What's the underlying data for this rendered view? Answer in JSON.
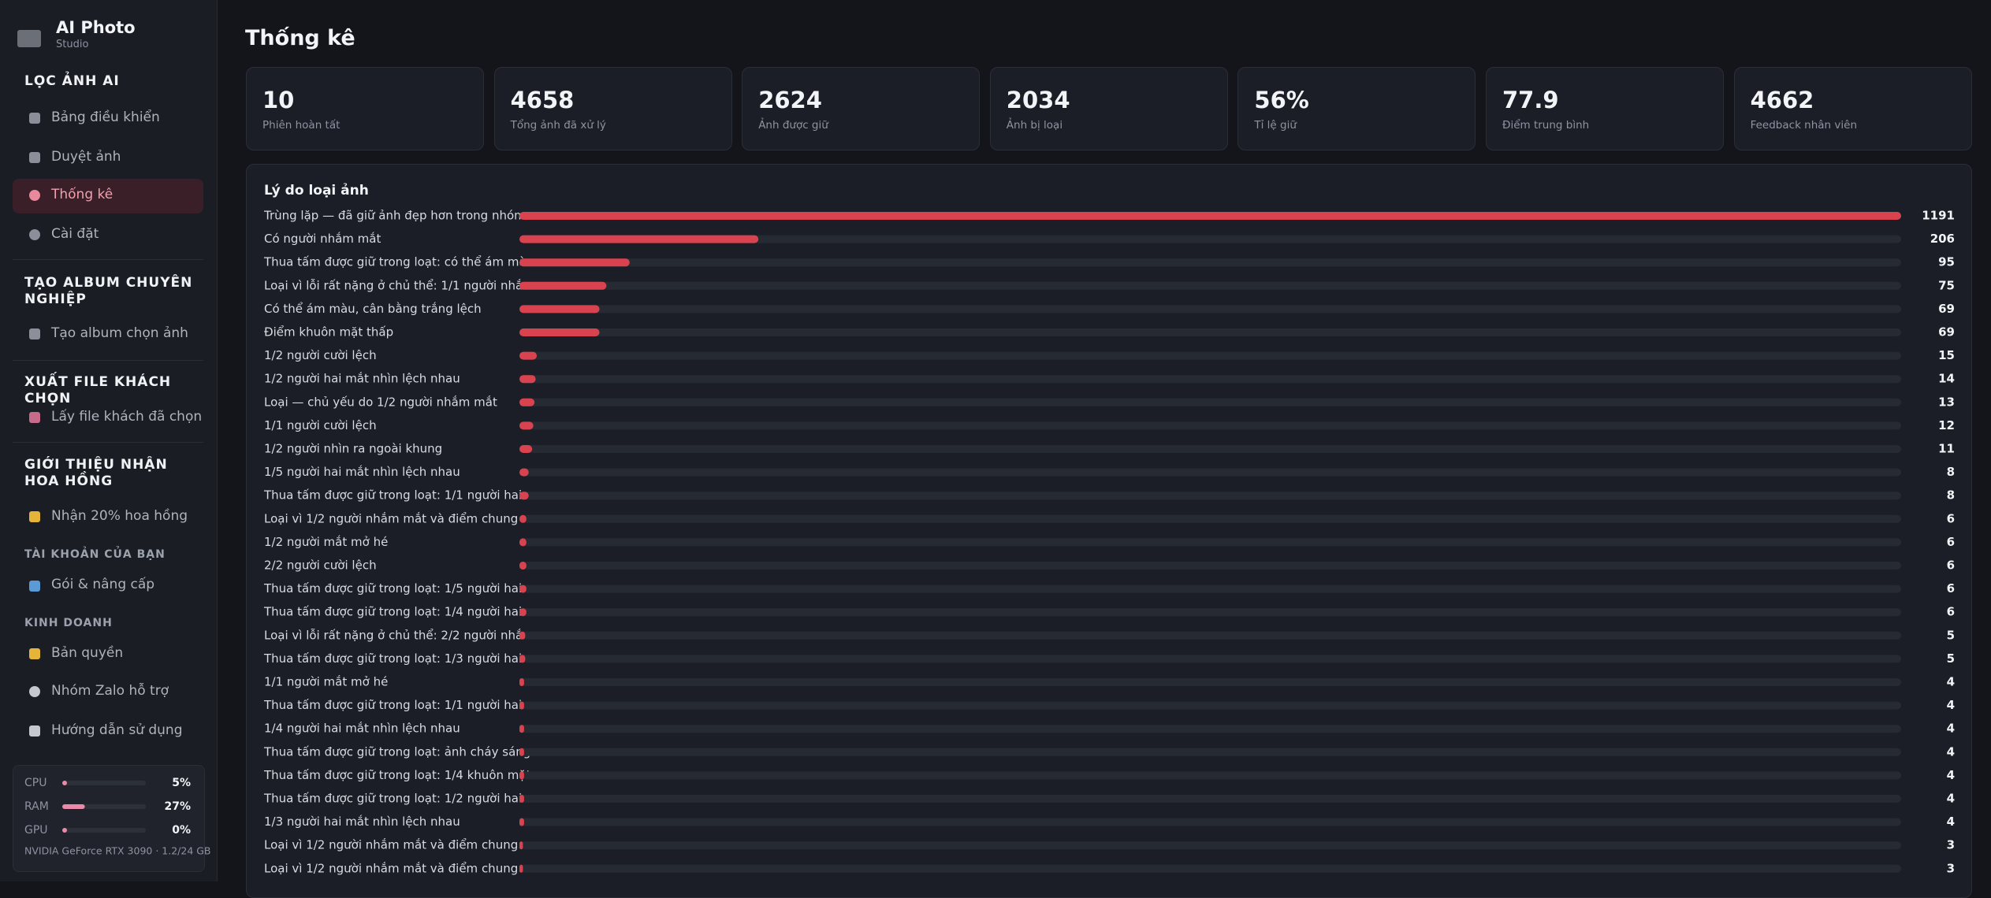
{
  "sidebar": {
    "brand": "AI Photo",
    "brand_sub": "Studio",
    "sections": [
      {
        "title": "LỌC ẢNH AI",
        "items": [
          "Bảng điều khiển",
          "Duyệt ảnh",
          "Thống kê",
          "Cài đặt"
        ]
      },
      {
        "title": "TẠO ALBUM CHUYÊN NGHIỆP",
        "items": [
          "Tạo album chọn ảnh"
        ]
      },
      {
        "title": "XUẤT FILE KHÁCH CHỌN",
        "items": [
          "Lấy file khách đã chọn"
        ]
      },
      {
        "title": "GIỚI THIỆU NHẬN HOA HỒNG",
        "items": [
          "Nhận 20% hoa hồng"
        ]
      },
      {
        "title": "TÀI KHOẢN CỦA BẠN",
        "items": [
          "Gói & nâng cấp"
        ]
      },
      {
        "title": "KINH DOANH",
        "items": [
          "Bản quyền",
          "Nhóm Zalo hỗ trợ",
          "Hướng dẫn sử dụng"
        ]
      }
    ],
    "system": {
      "xlim": [
        0,
        100
      ],
      "meters": [
        {
          "name": "CPU",
          "value": 5,
          "label": "5%"
        },
        {
          "name": "RAM",
          "value": 27,
          "label": "27%"
        },
        {
          "name": "GPU",
          "value": 0,
          "label": "0%"
        }
      ],
      "gpu_name": "NVIDIA GeForce RTX 3090 · 1.2/24 GB"
    }
  },
  "page_title": "Thống kê",
  "stats": [
    {
      "value": "10",
      "label": "Phiên hoàn tất"
    },
    {
      "value": "4658",
      "label": "Tổng ảnh đã xử lý"
    },
    {
      "value": "2624",
      "label": "Ảnh được giữ"
    },
    {
      "value": "2034",
      "label": "Ảnh bị loại"
    },
    {
      "value": "56%",
      "label": "Tỉ lệ giữ"
    },
    {
      "value": "77.9",
      "label": "Điểm trung bình"
    },
    {
      "value": "4662",
      "label": "Feedback nhân viên"
    }
  ],
  "chart_data": {
    "type": "hbar",
    "title": "Lý do loại ảnh",
    "color": "#d9434f",
    "xlim": [
      0,
      1191
    ],
    "categories": [
      "Trùng lặp — đã giữ ảnh đẹp hơn trong nhóm",
      "Có người nhắm mắt",
      "Thua tấm được giữ trong loạt: có thể ám mà...",
      "Loại vì lỗi rất nặng ở chủ thể: 1/1 người nhắ...",
      "Có thể ám màu, cân bằng trắng lệch",
      "Điểm khuôn mặt thấp",
      "1/2 người cười lệch",
      "1/2 người hai mắt nhìn lệch nhau",
      "Loại — chủ yếu do 1/2 người nhắm mắt",
      "1/1 người cười lệch",
      "1/2 người nhìn ra ngoài khung",
      "1/5 người hai mắt nhìn lệch nhau",
      "Thua tấm được giữ trong loạt: 1/1 người hai ...",
      "Loại vì 1/2 người nhắm mắt và điểm chung c...",
      "1/2 người mắt mở hé",
      "2/2 người cười lệch",
      "Thua tấm được giữ trong loạt: 1/5 người hai ...",
      "Thua tấm được giữ trong loạt: 1/4 người hai ...",
      "Loại vì lỗi rất nặng ở chủ thể: 2/2 người nhắ...",
      "Thua tấm được giữ trong loạt: 1/3 người hai ...",
      "1/1 người mắt mở hé",
      "Thua tấm được giữ trong loạt: 1/1 người hai ...",
      "1/4 người hai mắt nhìn lệch nhau",
      "Thua tấm được giữ trong loạt: ảnh cháy sáng",
      "Thua tấm được giữ trong loạt: 1/4 khuôn mặt...",
      "Thua tấm được giữ trong loạt: 1/2 người hai ...",
      "1/3 người hai mắt nhìn lệch nhau",
      "Loại vì 1/2 người nhắm mắt và điểm chung c...",
      "Loại vì 1/2 người nhắm mắt và điểm chung c..."
    ],
    "values": [
      1191,
      206,
      95,
      75,
      69,
      69,
      15,
      14,
      13,
      12,
      11,
      8,
      8,
      6,
      6,
      6,
      6,
      6,
      5,
      5,
      4,
      4,
      4,
      4,
      4,
      4,
      4,
      3,
      3
    ]
  }
}
